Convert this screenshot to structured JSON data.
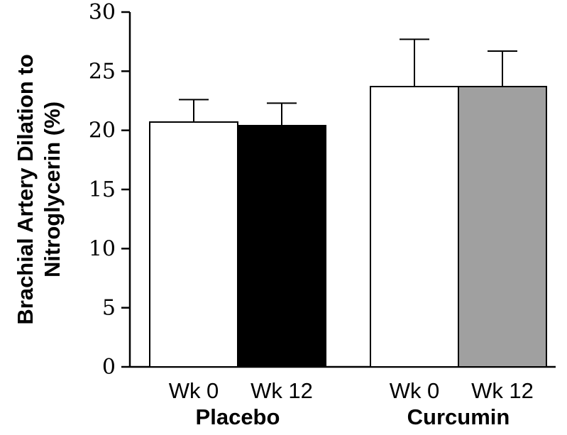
{
  "chart_data": {
    "type": "bar",
    "ylabel_lines": [
      "Brachial Artery Dilation to",
      "Nitroglycerin (%)"
    ],
    "ylim": [
      0,
      30
    ],
    "yticks": [
      0,
      5,
      10,
      15,
      20,
      25,
      30
    ],
    "grid": false,
    "legend": "none",
    "groups": [
      {
        "label": "Placebo",
        "bars": [
          {
            "label": "Wk 0",
            "value": 20.7,
            "error": 1.9,
            "color": "#ffffff"
          },
          {
            "label": "Wk 12",
            "value": 20.4,
            "error": 1.9,
            "color": "#000000"
          }
        ]
      },
      {
        "label": "Curcumin",
        "bars": [
          {
            "label": "Wk 0",
            "value": 23.7,
            "error": 4.0,
            "color": "#ffffff"
          },
          {
            "label": "Wk 12",
            "value": 23.7,
            "error": 3.0,
            "color": "#a0a0a0"
          }
        ]
      }
    ]
  }
}
